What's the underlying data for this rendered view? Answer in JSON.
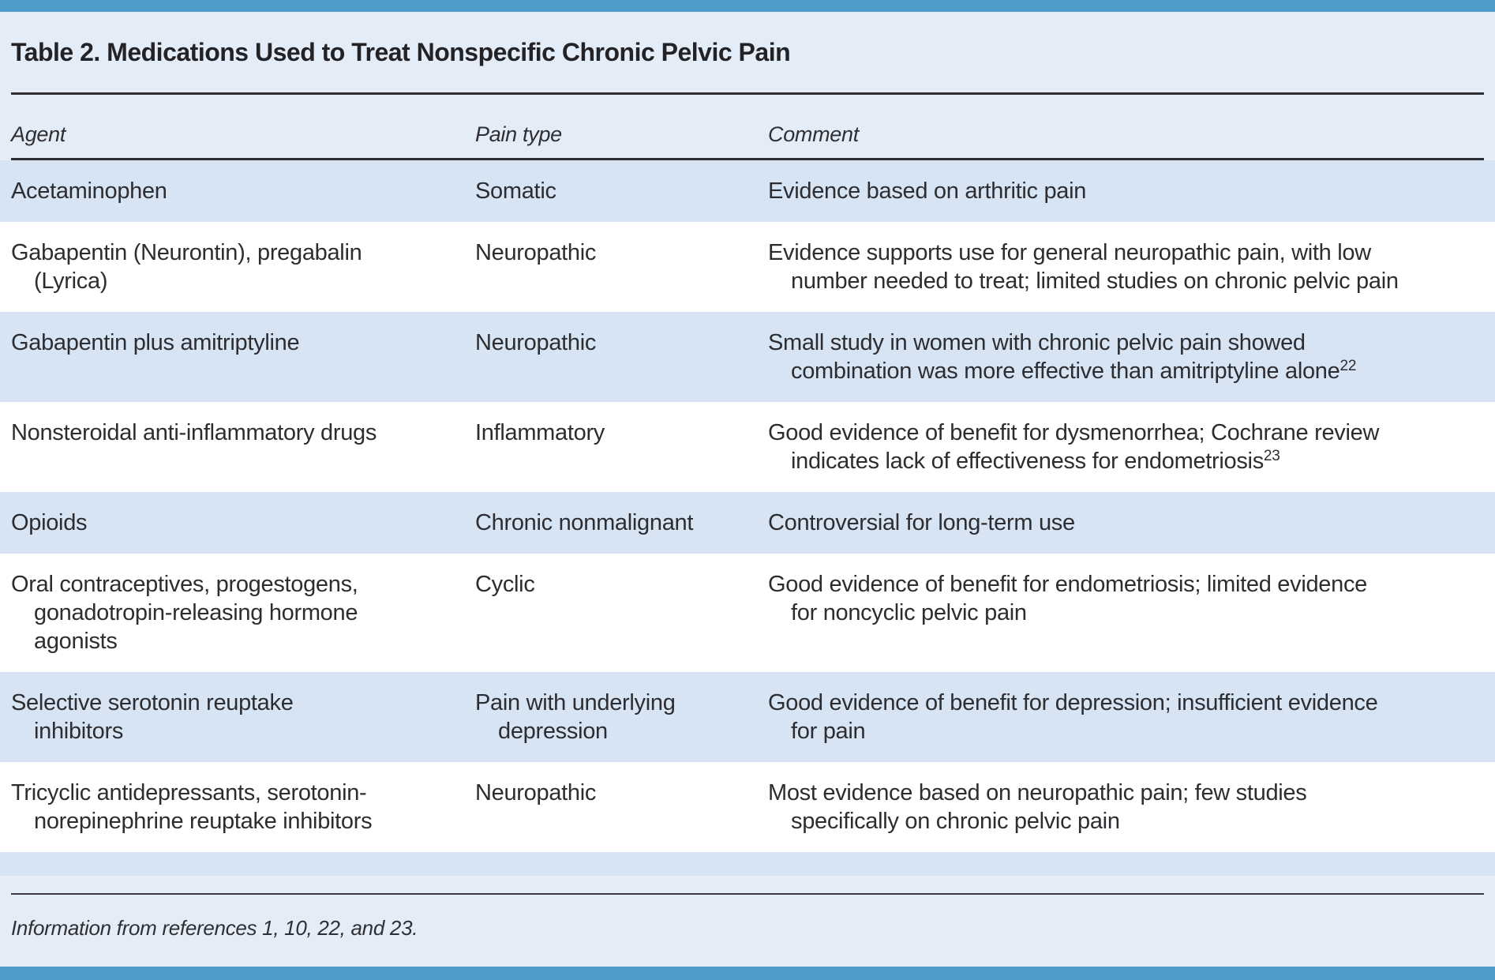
{
  "table": {
    "title": "Table 2. Medications Used to Treat Nonspecific Chronic Pelvic Pain",
    "columns": [
      "Agent",
      "Pain type",
      "Comment"
    ],
    "rows": [
      {
        "shade": "blue",
        "agent": [
          "Acetaminophen"
        ],
        "pain_type": [
          "Somatic"
        ],
        "comment": [
          "Evidence based on arthritic pain"
        ],
        "comment_sup": ""
      },
      {
        "shade": "white",
        "agent": [
          "Gabapentin (Neurontin), pregabalin",
          "(Lyrica)"
        ],
        "pain_type": [
          "Neuropathic"
        ],
        "comment": [
          "Evidence supports use for general neuropathic pain, with low",
          "number needed to treat; limited studies on chronic pelvic pain"
        ],
        "comment_sup": ""
      },
      {
        "shade": "blue",
        "agent": [
          "Gabapentin plus amitriptyline"
        ],
        "pain_type": [
          "Neuropathic"
        ],
        "comment": [
          "Small study in women with chronic pelvic pain showed",
          "combination was more effective than amitriptyline alone"
        ],
        "comment_sup": "22"
      },
      {
        "shade": "white",
        "agent": [
          "Nonsteroidal anti-inflammatory drugs"
        ],
        "pain_type": [
          "Inflammatory"
        ],
        "comment": [
          "Good evidence of benefit for dysmenorrhea; Cochrane review",
          "indicates lack of effectiveness for endometriosis"
        ],
        "comment_sup": "23"
      },
      {
        "shade": "blue",
        "agent": [
          "Opioids"
        ],
        "pain_type": [
          "Chronic nonmalignant"
        ],
        "comment": [
          "Controversial for long-term use"
        ],
        "comment_sup": ""
      },
      {
        "shade": "white",
        "agent": [
          "Oral contraceptives, progestogens,",
          "gonadotropin-releasing hormone",
          "agonists"
        ],
        "pain_type": [
          "Cyclic"
        ],
        "comment": [
          "Good evidence of benefit for endometriosis; limited evidence",
          "for noncyclic pelvic pain"
        ],
        "comment_sup": ""
      },
      {
        "shade": "blue",
        "agent": [
          "Selective serotonin reuptake",
          "inhibitors"
        ],
        "pain_type": [
          "Pain with underlying",
          "depression"
        ],
        "comment": [
          "Good evidence of benefit for depression; insufficient evidence",
          "for pain"
        ],
        "comment_sup": ""
      },
      {
        "shade": "white",
        "agent": [
          "Tricyclic antidepressants, serotonin-",
          "norepinephrine reuptake inhibitors"
        ],
        "pain_type": [
          "Neuropathic"
        ],
        "comment": [
          "Most evidence based on neuropathic pain; few studies",
          "specifically on chronic pelvic pain"
        ],
        "comment_sup": ""
      }
    ],
    "footnote": "Information from references 1, 10, 22, and 23."
  },
  "colors": {
    "accent_bar": "#4d9cc9",
    "page_bg": "#e4ecf8",
    "row_blue": "#d7e4f3",
    "row_white": "#ffffff",
    "rule": "#2e2e33",
    "text": "#2d2d31"
  }
}
